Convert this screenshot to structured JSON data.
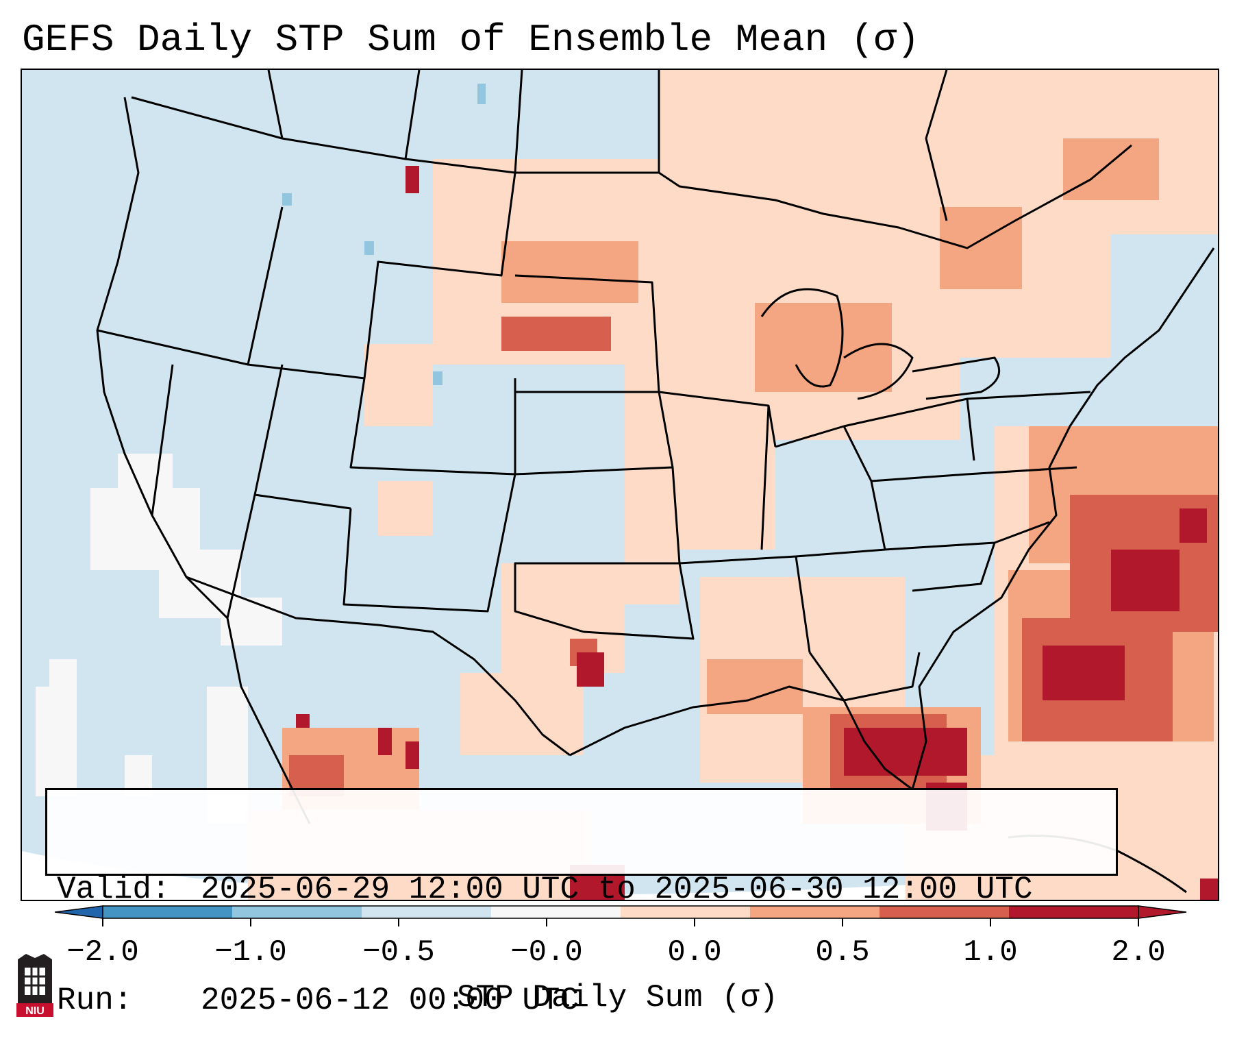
{
  "title": "GEFS Daily STP Sum of Ensemble Mean (σ)",
  "info": {
    "valid_label": "Valid:",
    "valid_value": "2025-06-29 12:00 UTC to 2025-06-30 12:00 UTC",
    "run_label": "Run:",
    "run_value": "2025-06-12 00:00 UTC"
  },
  "colorbar": {
    "label": "STP Daily Sum (σ)",
    "ticks": [
      "−2.0",
      "−1.0",
      "−0.5",
      "−0.0",
      "0.0",
      "0.5",
      "1.0",
      "2.0"
    ],
    "colors": [
      "#4393c3",
      "#92c5de",
      "#d1e5f0",
      "#f7f7f7",
      "#fddbc7",
      "#f4a582",
      "#d6604d",
      "#b2182b"
    ],
    "extend_low_color": "#2166ac",
    "extend_high_color": "#b2182b"
  },
  "logo": {
    "text": "NIU"
  },
  "colors": {
    "ocean": "#d1e5f0",
    "outside_domain": "#ffffff",
    "borders": "#000000"
  }
}
